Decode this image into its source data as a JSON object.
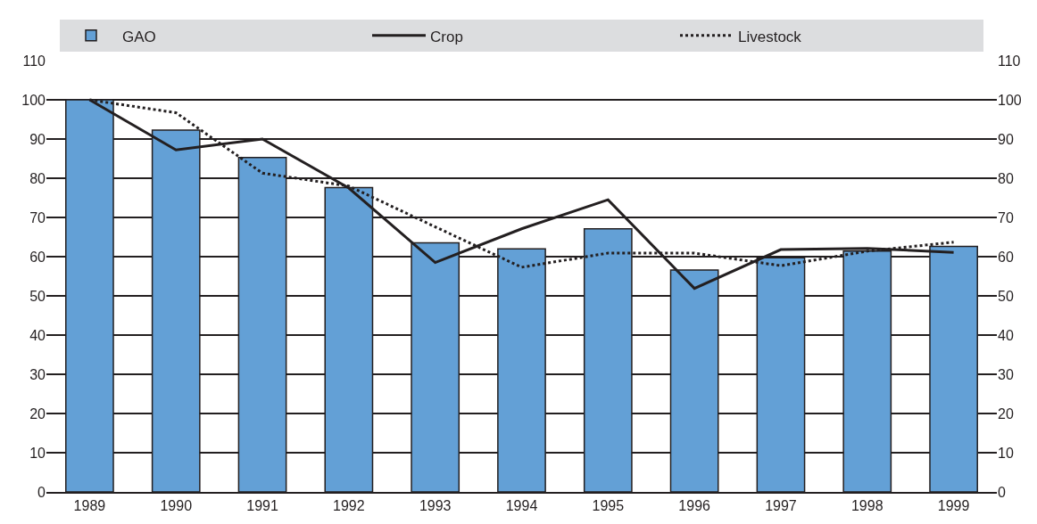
{
  "chart_data": {
    "type": "bar",
    "categories": [
      "1989",
      "1990",
      "1991",
      "1992",
      "1993",
      "1994",
      "1995",
      "1996",
      "1997",
      "1998",
      "1999"
    ],
    "series": [
      {
        "name": "GAO",
        "color": "#63a0d6",
        "values": [
          100,
          92.3,
          85.3,
          77.6,
          63.5,
          62.0,
          67.1,
          56.6,
          59.7,
          61.4,
          62.6
        ]
      },
      {
        "name": "Crop",
        "type": "line",
        "color": "#231f20",
        "line_style": "solid",
        "values": [
          100,
          87.2,
          90,
          77.5,
          58.5,
          67.1,
          74.5,
          51.9,
          61.8,
          62.1,
          61.1
        ]
      },
      {
        "name": "Livestock",
        "type": "line",
        "color": "#231f20",
        "line_style": "dotted",
        "values": [
          100,
          96.7,
          81.3,
          78,
          67.6,
          57.3,
          60.9,
          60.9,
          57.7,
          61.4,
          63.7
        ]
      }
    ],
    "ylim": [
      0,
      110
    ],
    "yticks": [
      0,
      10,
      20,
      30,
      40,
      50,
      60,
      70,
      80,
      90,
      100,
      110
    ],
    "y2lim": [
      0,
      110
    ],
    "y2ticks": [
      0,
      10,
      20,
      30,
      40,
      50,
      60,
      70,
      80,
      90,
      100,
      110
    ],
    "grid": "y",
    "legend": "top",
    "marker": "none"
  }
}
